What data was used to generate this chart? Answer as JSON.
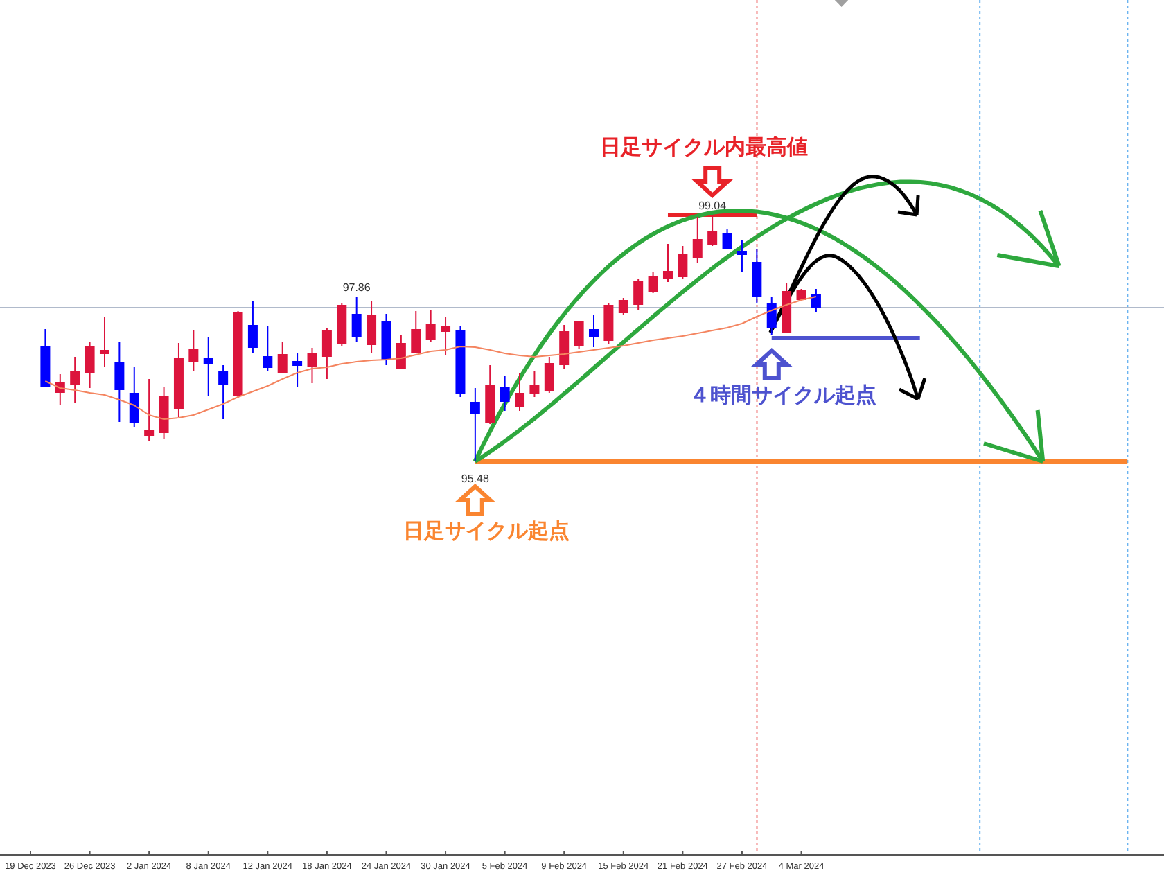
{
  "chart_data": {
    "type": "candlestick",
    "categories": [
      "19 Dec 2023",
      null,
      null,
      null,
      "26 Dec 2023",
      null,
      null,
      null,
      "2 Jan 2024",
      null,
      null,
      null,
      "8 Jan 2024",
      null,
      null,
      null,
      "12 Jan 2024",
      null,
      null,
      null,
      "18 Jan 2024",
      null,
      null,
      null,
      "24 Jan 2024",
      null,
      null,
      null,
      "30 Jan 2024",
      null,
      null,
      null,
      "5 Feb 2024",
      null,
      null,
      null,
      "9 Feb 2024",
      null,
      null,
      null,
      "15 Feb 2024",
      null,
      null,
      null,
      "21 Feb 2024",
      null,
      null,
      null,
      "27 Feb 2024",
      null,
      null,
      null,
      "4 Mar 2024",
      null,
      null,
      null,
      null,
      null,
      null,
      null,
      null,
      null,
      null,
      null,
      null,
      null,
      null,
      null,
      null,
      null,
      null,
      null,
      null,
      null,
      null,
      null,
      null
    ],
    "ohlc": [
      null,
      [
        97.14,
        97.39,
        96.55,
        96.56
      ],
      [
        96.47,
        96.74,
        96.29,
        96.63
      ],
      [
        96.59,
        96.99,
        96.32,
        96.79
      ],
      [
        96.76,
        97.21,
        96.54,
        97.15
      ],
      [
        97.03,
        97.57,
        96.85,
        97.09
      ],
      [
        96.91,
        97.21,
        96.05,
        96.51
      ],
      [
        96.47,
        96.84,
        95.97,
        96.04
      ],
      [
        95.85,
        96.67,
        95.77,
        95.94
      ],
      [
        95.89,
        96.56,
        95.81,
        96.43
      ],
      [
        96.24,
        97.19,
        96.12,
        96.97
      ],
      [
        96.91,
        97.37,
        96.79,
        97.1
      ],
      [
        96.98,
        97.27,
        96.42,
        96.88
      ],
      [
        96.79,
        96.87,
        96.09,
        96.58
      ],
      [
        96.43,
        97.65,
        96.39,
        97.63
      ],
      [
        97.45,
        97.8,
        97.04,
        97.12
      ],
      [
        97.0,
        97.44,
        96.79,
        96.83
      ],
      [
        96.76,
        97.21,
        96.75,
        97.03
      ],
      [
        96.93,
        97.04,
        96.55,
        96.86
      ],
      [
        96.84,
        97.12,
        96.61,
        97.04
      ],
      [
        96.99,
        97.41,
        96.67,
        97.37
      ],
      [
        97.17,
        97.77,
        97.14,
        97.74
      ],
      [
        97.61,
        97.86,
        97.21,
        97.27
      ],
      [
        97.16,
        97.8,
        97.05,
        97.59
      ],
      [
        97.5,
        97.61,
        96.87,
        96.95
      ],
      [
        96.81,
        97.31,
        96.81,
        97.19
      ],
      [
        97.05,
        97.65,
        97.04,
        97.39
      ],
      [
        97.23,
        97.67,
        97.21,
        97.47
      ],
      [
        97.35,
        97.57,
        97.01,
        97.43
      ],
      [
        97.37,
        97.43,
        96.41,
        96.46
      ],
      [
        96.34,
        96.54,
        95.48,
        96.17
      ],
      [
        96.03,
        96.87,
        96.02,
        96.59
      ],
      [
        96.55,
        96.71,
        96.21,
        96.34
      ],
      [
        96.26,
        96.75,
        96.21,
        96.47
      ],
      [
        96.46,
        96.79,
        96.41,
        96.59
      ],
      [
        96.49,
        96.99,
        96.47,
        96.9
      ],
      [
        96.87,
        97.45,
        96.81,
        97.36
      ],
      [
        97.15,
        97.51,
        97.11,
        97.51
      ],
      [
        97.39,
        97.59,
        97.13,
        97.27
      ],
      [
        97.22,
        97.77,
        97.17,
        97.74
      ],
      [
        97.62,
        97.84,
        97.59,
        97.81
      ],
      [
        97.74,
        98.11,
        97.67,
        98.09
      ],
      [
        97.93,
        98.21,
        97.91,
        98.15
      ],
      [
        98.11,
        98.62,
        98.07,
        98.23
      ],
      [
        98.14,
        98.59,
        98.11,
        98.47
      ],
      [
        98.42,
        99.01,
        98.35,
        98.69
      ],
      [
        98.61,
        99.04,
        98.59,
        98.81
      ],
      [
        98.77,
        98.84,
        98.54,
        98.55
      ],
      [
        98.52,
        98.67,
        98.21,
        98.46
      ],
      [
        98.36,
        98.54,
        97.77,
        97.86
      ],
      [
        97.77,
        97.85,
        97.31,
        97.41
      ],
      [
        97.34,
        98.06,
        97.34,
        97.94
      ],
      [
        97.81,
        97.97,
        97.79,
        97.95
      ],
      [
        97.89,
        97.97,
        97.63,
        97.69
      ],
      null,
      null,
      null,
      null,
      null,
      null,
      null,
      null,
      null,
      null,
      null,
      null,
      null,
      null,
      null,
      null,
      null,
      null,
      null,
      null,
      null,
      null,
      null
    ],
    "colors": [
      null,
      "#0000ff",
      "#dc143c",
      "#dc143c",
      "#dc143c",
      "#dc143c",
      "#0000ff",
      "#0000ff",
      "#dc143c",
      "#dc143c",
      "#dc143c",
      "#dc143c",
      "#0000ff",
      "#0000ff",
      "#dc143c",
      "#0000ff",
      "#0000ff",
      "#dc143c",
      "#0000ff",
      "#dc143c",
      "#dc143c",
      "#dc143c",
      "#0000ff",
      "#dc143c",
      "#0000ff",
      "#dc143c",
      "#dc143c",
      "#dc143c",
      "#dc143c",
      "#0000ff",
      "#0000ff",
      "#dc143c",
      "#0000ff",
      "#dc143c",
      "#dc143c",
      "#dc143c",
      "#dc143c",
      "#dc143c",
      "#0000ff",
      "#dc143c",
      "#dc143c",
      "#dc143c",
      "#dc143c",
      "#dc143c",
      "#dc143c",
      "#dc143c",
      "#dc143c",
      "#0000ff",
      "#0000ff",
      "#0000ff",
      "#0000ff",
      "#dc143c",
      "#dc143c",
      "#0000ff",
      null,
      null,
      null,
      null,
      null,
      null,
      null,
      null,
      null,
      null,
      null,
      null,
      null,
      null,
      null,
      null,
      null,
      null,
      null,
      null,
      null,
      null,
      null
    ],
    "value_labels": [
      null,
      null,
      null,
      null,
      null,
      null,
      null,
      null,
      null,
      null,
      null,
      null,
      null,
      null,
      null,
      null,
      null,
      null,
      null,
      null,
      null,
      null,
      "97.86",
      null,
      null,
      null,
      null,
      null,
      null,
      null,
      "95.48",
      null,
      null,
      null,
      null,
      null,
      null,
      null,
      null,
      null,
      null,
      null,
      null,
      null,
      null,
      null,
      "99.04",
      null,
      null,
      null,
      null,
      null,
      null,
      null,
      null,
      null,
      null,
      null,
      null,
      null,
      null,
      null,
      null,
      null,
      null,
      null,
      null,
      null,
      null,
      null,
      null,
      null,
      null,
      null,
      null,
      null,
      null
    ],
    "series": [
      {
        "type": "line",
        "color": "#f4845f",
        "values": [
          null,
          96.64,
          96.54,
          96.51,
          96.47,
          96.44,
          96.37,
          96.29,
          96.15,
          96.09,
          96.11,
          96.15,
          96.23,
          96.31,
          96.41,
          96.49,
          96.57,
          96.67,
          96.76,
          96.82,
          96.84,
          96.89,
          96.92,
          96.94,
          96.95,
          96.97,
          97.02,
          97.07,
          97.09,
          97.14,
          97.13,
          97.09,
          97.04,
          97.01,
          96.99,
          97.01,
          97.03,
          97.06,
          97.09,
          97.12,
          97.15,
          97.19,
          97.23,
          97.26,
          97.29,
          97.33,
          97.37,
          97.41,
          97.47,
          97.57,
          97.66,
          97.74,
          97.81,
          97.86,
          null,
          null,
          null,
          null,
          null,
          null,
          null,
          null,
          null,
          null,
          null,
          null,
          null,
          null,
          null,
          null,
          null,
          null,
          null,
          null,
          null,
          null,
          null
        ]
      },
      {
        "type": "line",
        "color": "#fa8530",
        "values": [
          null,
          null,
          null,
          null,
          null,
          null,
          null,
          null,
          null,
          null,
          null,
          null,
          null,
          null,
          null,
          null,
          null,
          null,
          null,
          null,
          null,
          null,
          null,
          null,
          null,
          null,
          null,
          null,
          null,
          null,
          95.48,
          95.48,
          95.48,
          95.48,
          95.48,
          95.48,
          95.48,
          95.48,
          95.48,
          95.48,
          95.48,
          95.48,
          95.48,
          95.48,
          95.48,
          95.48,
          95.48,
          95.48,
          95.48,
          95.48,
          95.48,
          95.48,
          95.48,
          95.48,
          95.48,
          95.48,
          95.48,
          95.48,
          95.48,
          95.48,
          95.48,
          95.48,
          95.48,
          95.48,
          95.48,
          95.48,
          95.48,
          95.48,
          95.48,
          95.48,
          95.48,
          95.48,
          95.48,
          95.48,
          95.48,
          null,
          null
        ]
      },
      {
        "type": "line",
        "color": "#e82228",
        "values": [
          null,
          null,
          null,
          null,
          null,
          null,
          null,
          null,
          null,
          null,
          null,
          null,
          null,
          null,
          null,
          null,
          null,
          null,
          null,
          null,
          null,
          null,
          null,
          null,
          null,
          null,
          null,
          null,
          null,
          null,
          null,
          null,
          null,
          null,
          null,
          null,
          null,
          null,
          null,
          null,
          null,
          null,
          null,
          99.04,
          99.04,
          99.04,
          99.04,
          99.04,
          99.04,
          99.04,
          null,
          null,
          null,
          null,
          null,
          null,
          null,
          null,
          null,
          null,
          null,
          null,
          null,
          null,
          null,
          null,
          null,
          null,
          null,
          null,
          null,
          null,
          null,
          null,
          null,
          null,
          null
        ]
      },
      {
        "type": "line",
        "color": "#4d52cf",
        "values": [
          null,
          null,
          null,
          null,
          null,
          null,
          null,
          null,
          null,
          null,
          null,
          null,
          null,
          null,
          null,
          null,
          null,
          null,
          null,
          null,
          null,
          null,
          null,
          null,
          null,
          null,
          null,
          null,
          null,
          null,
          null,
          null,
          null,
          null,
          null,
          null,
          null,
          null,
          null,
          null,
          null,
          null,
          null,
          null,
          null,
          null,
          null,
          null,
          null,
          null,
          97.26,
          97.26,
          97.26,
          97.26,
          97.26,
          97.26,
          97.26,
          97.26,
          97.26,
          97.26,
          97.26,
          null,
          null,
          null,
          null,
          null,
          null,
          null,
          null,
          null,
          null,
          null,
          null,
          null,
          null,
          null,
          null
        ]
      }
    ],
    "ref_lines": [
      {
        "axis": "y",
        "value": 97.7,
        "color": "#b0bacb"
      }
    ],
    "annotations": [
      {
        "text": "日足サイクル内最高値",
        "y": 99.04
      },
      {
        "text": "４時間サイクル起点",
        "y": 97.26
      },
      {
        "text": "日足サイクル起点",
        "y": 95.48
      }
    ]
  }
}
